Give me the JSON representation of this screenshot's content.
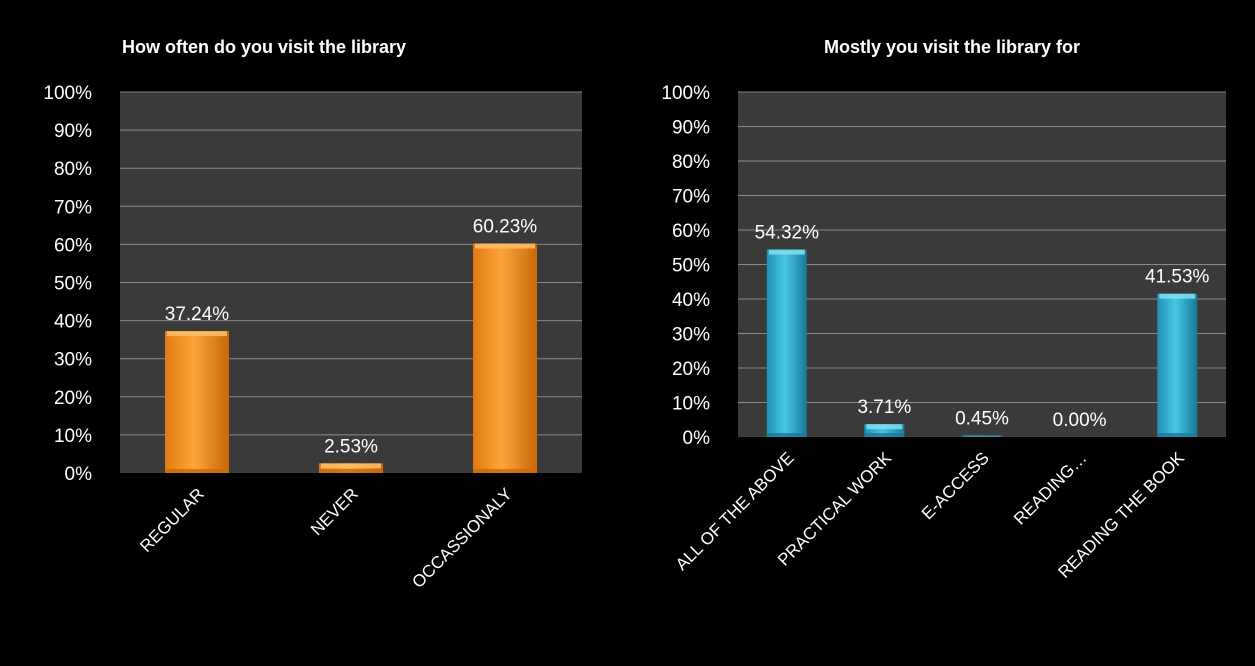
{
  "chart_data": [
    {
      "type": "bar",
      "title": "How often do you visit the library",
      "categories": [
        "REGULAR",
        "NEVER",
        "OCCASSIONALY"
      ],
      "values": [
        37.24,
        2.53,
        60.23
      ],
      "data_labels": [
        "37.24%",
        "2.53%",
        "60.23%"
      ],
      "ylim": [
        0,
        100
      ],
      "ytick_labels": [
        "0%",
        "10%",
        "20%",
        "30%",
        "40%",
        "50%",
        "60%",
        "70%",
        "80%",
        "90%",
        "100%"
      ],
      "grid": true,
      "colors": {
        "bar": "#f7931e",
        "bar_light": "#ffc06a",
        "bar_dark": "#c86a0a",
        "plot_bg": "#3a3a3a",
        "grid": "#8a8a8a"
      }
    },
    {
      "type": "bar",
      "title": "Mostly you visit the library for",
      "categories": [
        "ALL OF THE ABOVE",
        "PRACTICAL WORK",
        "E-ACCESS",
        "READING…",
        "READING THE BOOK"
      ],
      "values": [
        54.32,
        3.71,
        0.45,
        0.0,
        41.53
      ],
      "data_labels": [
        "54.32%",
        "3.71%",
        "0.45%",
        "0.00%",
        "41.53%"
      ],
      "ylim": [
        0,
        100
      ],
      "ytick_labels": [
        "0%",
        "10%",
        "20%",
        "30%",
        "40%",
        "50%",
        "60%",
        "70%",
        "80%",
        "90%",
        "100%"
      ],
      "grid": true,
      "colors": {
        "bar": "#31b0d5",
        "bar_light": "#7fe0f5",
        "bar_dark": "#1a7a99",
        "plot_bg": "#3a3a3a",
        "grid": "#8a8a8a"
      }
    }
  ]
}
